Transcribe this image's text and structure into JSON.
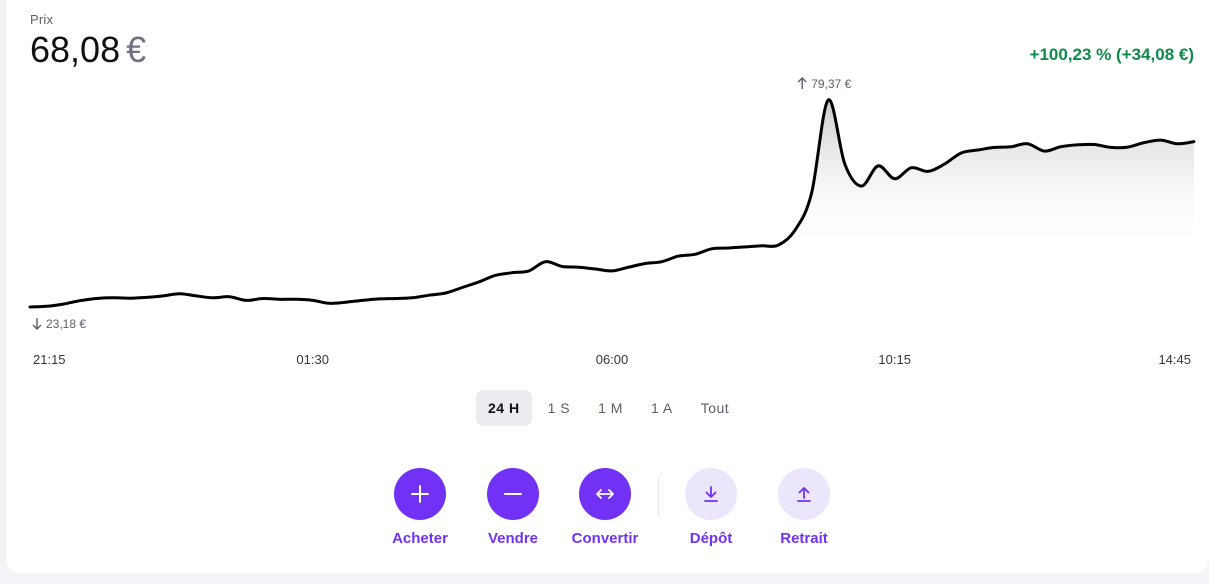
{
  "header": {
    "price_label": "Prix",
    "price_value": "68,08",
    "currency": "€",
    "change": "+100,23 % (+34,08 €)",
    "change_color": "#0f8a4b"
  },
  "chart_data": {
    "type": "area",
    "x": [
      "21:15",
      "21:30",
      "21:45",
      "22:00",
      "22:15",
      "22:30",
      "22:45",
      "23:00",
      "23:15",
      "23:30",
      "23:45",
      "00:00",
      "00:15",
      "00:30",
      "00:45",
      "01:00",
      "01:15",
      "01:30",
      "01:45",
      "02:00",
      "02:15",
      "02:30",
      "02:45",
      "03:00",
      "03:15",
      "03:30",
      "03:45",
      "04:00",
      "04:15",
      "04:30",
      "04:45",
      "05:00",
      "05:15",
      "05:30",
      "05:45",
      "06:00",
      "06:15",
      "06:30",
      "06:45",
      "07:00",
      "07:15",
      "07:30",
      "07:45",
      "08:00",
      "08:15",
      "08:30",
      "08:45",
      "09:00",
      "09:15",
      "09:30",
      "09:45",
      "10:00",
      "10:15",
      "10:30",
      "10:45",
      "11:00",
      "11:15",
      "11:30",
      "11:45",
      "12:00",
      "12:15",
      "12:30",
      "12:45",
      "13:00",
      "13:15",
      "13:30",
      "13:45",
      "14:00",
      "14:15",
      "14:30",
      "14:45"
    ],
    "values": [
      23.2,
      23.4,
      24.0,
      24.9,
      25.5,
      25.7,
      25.6,
      25.8,
      26.2,
      26.8,
      26.2,
      25.7,
      26.0,
      25.0,
      25.5,
      25.3,
      25.3,
      25.0,
      24.2,
      24.5,
      25.0,
      25.4,
      25.5,
      25.7,
      26.4,
      27.0,
      28.5,
      30.0,
      31.8,
      32.5,
      33.0,
      35.5,
      34.2,
      34.0,
      33.5,
      33.0,
      34.0,
      35.0,
      35.5,
      37.0,
      37.5,
      39.0,
      39.2,
      39.5,
      39.8,
      40.0,
      44.0,
      54.0,
      79.37,
      62.0,
      56.0,
      61.5,
      58.0,
      61.0,
      60.0,
      62.0,
      65.0,
      65.8,
      66.5,
      66.7,
      67.5,
      65.5,
      66.7,
      67.2,
      67.3,
      66.5,
      66.6,
      67.8,
      68.5,
      67.5,
      68.08
    ],
    "x_ticks": [
      "21:15",
      "01:30",
      "06:00",
      "10:15",
      "14:45"
    ],
    "annotations": {
      "max": {
        "value": 79.37,
        "label": "79,37 €"
      },
      "min": {
        "value": 23.18,
        "label": "23,18 €"
      }
    },
    "grid": false,
    "line_color": "#000000"
  },
  "tabs": [
    {
      "label": "24 H",
      "active": true
    },
    {
      "label": "1 S",
      "active": false
    },
    {
      "label": "1 M",
      "active": false
    },
    {
      "label": "1 A",
      "active": false
    },
    {
      "label": "Tout",
      "active": false
    }
  ],
  "actions": [
    {
      "label": "Acheter",
      "icon": "plus-icon"
    },
    {
      "label": "Vendre",
      "icon": "minus-icon"
    },
    {
      "label": "Convertir",
      "icon": "convert-arrows-icon"
    },
    {
      "label": "Dépôt",
      "icon": "download-icon"
    },
    {
      "label": "Retrait",
      "icon": "upload-icon"
    }
  ],
  "colors": {
    "accent": "#7132f5",
    "accent_light": "#ece6fd"
  }
}
